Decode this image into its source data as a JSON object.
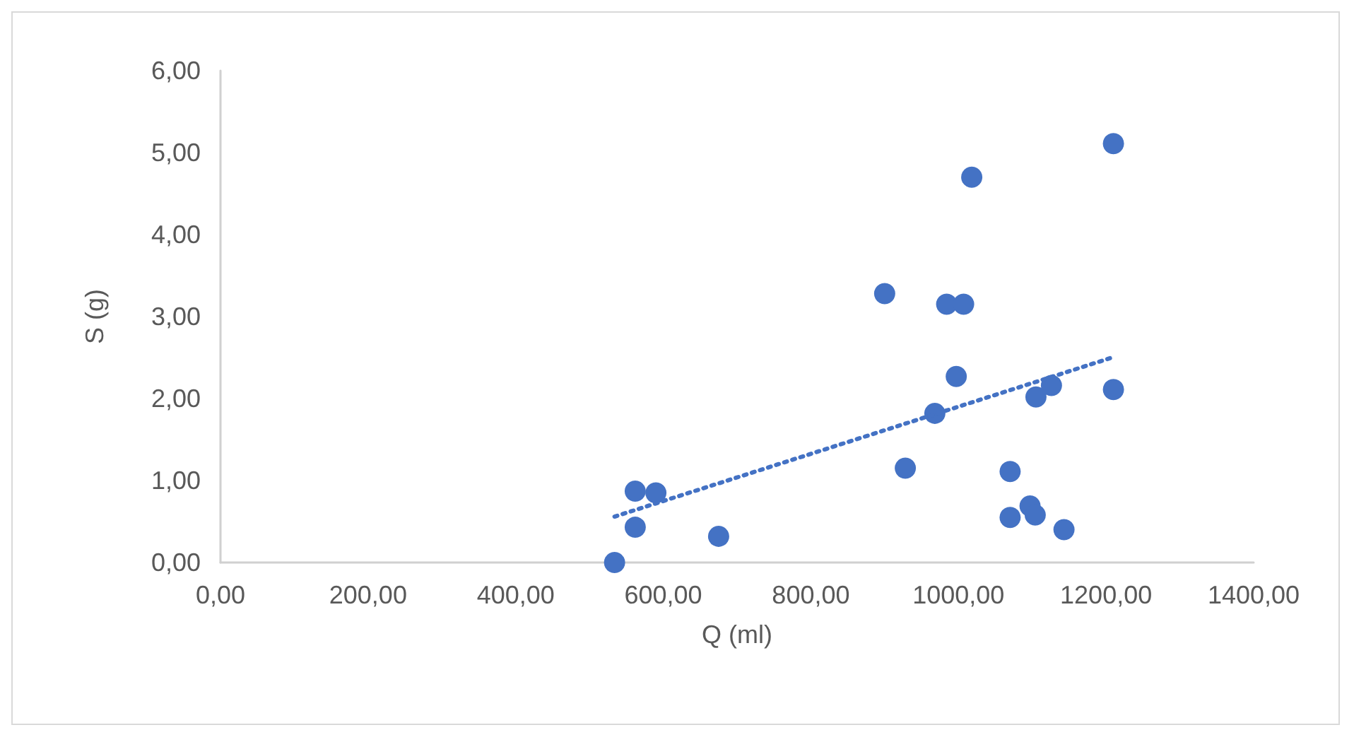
{
  "chart_data": {
    "type": "scatter",
    "xlabel": "Q (ml)",
    "ylabel": "S (g)",
    "xlim": [
      0,
      1400
    ],
    "ylim": [
      0,
      6
    ],
    "xticks": [
      {
        "value": 0,
        "label": "0,00"
      },
      {
        "value": 200,
        "label": "200,00"
      },
      {
        "value": 400,
        "label": "400,00"
      },
      {
        "value": 600,
        "label": "600,00"
      },
      {
        "value": 800,
        "label": "800,00"
      },
      {
        "value": 1000,
        "label": "1000,00"
      },
      {
        "value": 1200,
        "label": "1200,00"
      },
      {
        "value": 1400,
        "label": "1400,00"
      }
    ],
    "yticks": [
      {
        "value": 0,
        "label": "0,00"
      },
      {
        "value": 1,
        "label": "1,00"
      },
      {
        "value": 2,
        "label": "2,00"
      },
      {
        "value": 3,
        "label": "3,00"
      },
      {
        "value": 4,
        "label": "4,00"
      },
      {
        "value": 5,
        "label": "5,00"
      },
      {
        "value": 6,
        "label": "6,00"
      }
    ],
    "grid": false,
    "marker": "circle",
    "series": [
      {
        "color": "#4472c4",
        "x": [
          534,
          562,
          590,
          562,
          675,
          900,
          928,
          968,
          984,
          1007,
          997,
          1018,
          1070,
          1070,
          1097,
          1104,
          1143,
          1105,
          1126,
          1210,
          1210
        ],
        "values": [
          0.0,
          0.87,
          0.85,
          0.43,
          0.32,
          3.28,
          1.15,
          1.82,
          3.15,
          3.15,
          2.27,
          4.7,
          1.11,
          0.55,
          0.69,
          0.58,
          0.4,
          2.02,
          2.16,
          5.11,
          2.11
        ]
      },
      {
        "type": "line",
        "color": "#4472c4",
        "line_style": "dotted",
        "marker": "none",
        "x": [
          534,
          1208
        ],
        "values": [
          0.56,
          2.5
        ]
      }
    ]
  }
}
